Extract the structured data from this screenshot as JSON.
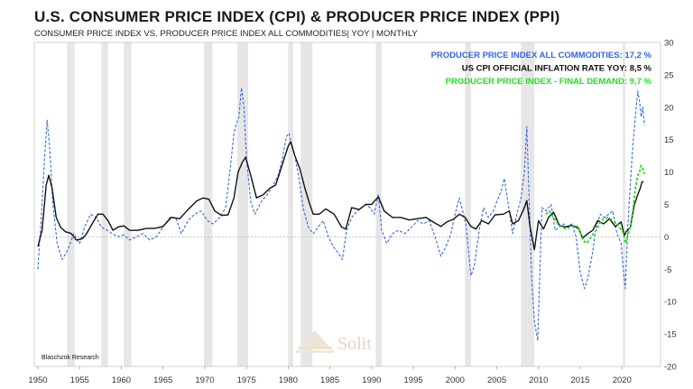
{
  "chart_data": {
    "type": "line",
    "title": "U.S. CONSUMER PRICE INDEX (CPI) & PRODUCER PRICE INDEX (PPI)",
    "subtitle": "CONSUMER PRICE INDEX VS. PRODUCER PRICE INDEX ALL COMMODITIES| YOY | MONTHLY",
    "xlim": [
      1950,
      2023
    ],
    "ylim": [
      -20,
      30
    ],
    "x_ticks": [
      1950,
      1955,
      1960,
      1965,
      1970,
      1975,
      1980,
      1985,
      1990,
      1995,
      2000,
      2005,
      2010,
      2015,
      2020
    ],
    "y_ticks": [
      30,
      25,
      20,
      15,
      10,
      5,
      0,
      -5,
      -10,
      -15,
      -20
    ],
    "legend": [
      {
        "label": "PRODUCER PRICE INDEX ALL COMMODITIES: 17,2 %",
        "color": "#3366dd"
      },
      {
        "label": "US CPI OFFICIAL INFLATION RATE YOY: 8,5 %",
        "color": "#111111"
      },
      {
        "label": "PRODUCER PRICE INDEX - FINAL DEMAND: 9,7 %",
        "color": "#22dd22"
      }
    ],
    "recessions": [
      [
        1953.5,
        1954.4
      ],
      [
        1957.6,
        1958.4
      ],
      [
        1960.3,
        1961.2
      ],
      [
        1969.9,
        1970.9
      ],
      [
        1973.9,
        1975.2
      ],
      [
        1980.0,
        1980.6
      ],
      [
        1981.5,
        1982.9
      ],
      [
        1990.5,
        1991.2
      ],
      [
        2001.2,
        2001.9
      ],
      [
        2007.9,
        2009.5
      ],
      [
        2020.1,
        2020.4
      ]
    ],
    "series": [
      {
        "name": "US CPI Official Inflation Rate YoY",
        "color": "#111111",
        "style": "solid",
        "x": [
          1950.0,
          1950.5,
          1951.0,
          1951.3,
          1951.7,
          1952.2,
          1952.7,
          1953.3,
          1954.0,
          1954.6,
          1955.3,
          1955.8,
          1956.5,
          1957.2,
          1957.8,
          1958.4,
          1959.0,
          1959.6,
          1960.3,
          1961.0,
          1962.0,
          1963.0,
          1964.0,
          1965.0,
          1966.0,
          1967.0,
          1968.0,
          1969.0,
          1969.8,
          1970.5,
          1971.2,
          1972.0,
          1972.8,
          1973.5,
          1974.0,
          1974.5,
          1974.9,
          1975.5,
          1976.2,
          1977.0,
          1977.8,
          1978.5,
          1979.0,
          1979.5,
          1980.0,
          1980.3,
          1980.8,
          1981.4,
          1982.0,
          1982.6,
          1983.0,
          1983.7,
          1984.5,
          1985.5,
          1986.4,
          1986.9,
          1987.6,
          1988.5,
          1989.3,
          1990.0,
          1990.8,
          1991.5,
          1992.5,
          1993.5,
          1994.5,
          1995.5,
          1996.5,
          1997.5,
          1998.3,
          1999.0,
          1999.8,
          2000.5,
          2001.2,
          2001.9,
          2002.5,
          2003.2,
          2004.0,
          2004.8,
          2005.8,
          2006.5,
          2006.9,
          2007.6,
          2008.3,
          2008.6,
          2009.0,
          2009.5,
          2010.0,
          2010.6,
          2011.2,
          2011.8,
          2012.5,
          2013.2,
          2014.0,
          2014.8,
          2015.3,
          2015.9,
          2016.5,
          2017.1,
          2017.8,
          2018.5,
          2019.2,
          2019.9,
          2020.3,
          2020.5,
          2021.0,
          2021.5,
          2021.9,
          2022.2,
          2022.4,
          2022.6
        ],
        "y": [
          -1.5,
          1.0,
          8.0,
          9.5,
          7.5,
          3.0,
          1.5,
          0.8,
          0.5,
          -0.5,
          -0.3,
          0.4,
          2.0,
          3.5,
          3.5,
          2.5,
          1.0,
          1.5,
          1.7,
          1.0,
          1.0,
          1.3,
          1.3,
          1.6,
          3.0,
          2.8,
          4.2,
          5.5,
          6.0,
          5.8,
          4.0,
          3.3,
          3.4,
          6.0,
          10.0,
          11.5,
          12.3,
          9.5,
          6.0,
          6.5,
          7.5,
          8.0,
          10.0,
          12.0,
          14.0,
          14.7,
          12.5,
          10.5,
          7.5,
          5.0,
          3.5,
          3.5,
          4.3,
          3.5,
          1.5,
          1.2,
          4.5,
          4.2,
          5.0,
          5.0,
          6.2,
          4.0,
          3.0,
          3.0,
          2.6,
          2.8,
          3.0,
          2.2,
          1.6,
          2.3,
          2.7,
          3.5,
          3.0,
          1.6,
          1.2,
          2.5,
          2.0,
          3.4,
          3.5,
          4.0,
          2.0,
          2.5,
          4.5,
          5.6,
          1.5,
          -2.0,
          2.5,
          1.2,
          3.0,
          3.8,
          1.8,
          1.5,
          1.8,
          1.3,
          -0.2,
          0.5,
          1.0,
          2.5,
          2.0,
          2.8,
          1.6,
          2.3,
          0.2,
          0.8,
          1.4,
          5.0,
          6.5,
          7.5,
          8.5,
          8.5
        ]
      },
      {
        "name": "Producer Price Index All Commodities",
        "color": "#3366dd",
        "style": "dashed",
        "x": [
          1950.0,
          1950.4,
          1950.8,
          1951.1,
          1951.4,
          1951.8,
          1952.3,
          1952.9,
          1953.6,
          1954.3,
          1955.0,
          1955.6,
          1956.3,
          1957.0,
          1957.6,
          1958.3,
          1958.9,
          1959.6,
          1960.3,
          1961.0,
          1961.8,
          1962.6,
          1963.4,
          1964.2,
          1965.0,
          1965.8,
          1966.5,
          1967.2,
          1968.0,
          1968.8,
          1969.6,
          1970.3,
          1971.0,
          1971.8,
          1972.5,
          1973.0,
          1973.5,
          1973.8,
          1974.1,
          1974.4,
          1974.7,
          1975.0,
          1975.5,
          1976.0,
          1976.8,
          1977.5,
          1978.2,
          1978.8,
          1979.3,
          1979.8,
          1980.1,
          1980.4,
          1980.8,
          1981.3,
          1981.8,
          1982.4,
          1983.0,
          1983.6,
          1984.2,
          1984.8,
          1985.4,
          1986.0,
          1986.5,
          1987.0,
          1987.6,
          1988.3,
          1988.8,
          1989.3,
          1989.8,
          1990.3,
          1990.8,
          1991.2,
          1991.8,
          1992.5,
          1993.2,
          1994.0,
          1994.8,
          1995.5,
          1996.2,
          1996.9,
          1997.6,
          1998.3,
          1998.9,
          1999.5,
          2000.0,
          2000.5,
          2000.9,
          2001.3,
          2001.9,
          2002.3,
          2002.9,
          2003.4,
          2004.0,
          2004.6,
          2005.0,
          2005.5,
          2005.9,
          2006.5,
          2006.9,
          2007.4,
          2007.9,
          2008.3,
          2008.6,
          2008.9,
          2009.2,
          2009.5,
          2009.9,
          2010.4,
          2010.9,
          2011.5,
          2012.0,
          2012.5,
          2013.0,
          2013.5,
          2014.0,
          2014.5,
          2015.0,
          2015.5,
          2015.9,
          2016.4,
          2016.9,
          2017.4,
          2017.9,
          2018.4,
          2018.9,
          2019.4,
          2019.9,
          2020.2,
          2020.4,
          2020.7,
          2021.0,
          2021.3,
          2021.6,
          2021.9,
          2022.1,
          2022.3,
          2022.5,
          2022.7
        ],
        "y": [
          -5.0,
          3.0,
          12.0,
          18.0,
          14.0,
          5.0,
          -1.0,
          -3.5,
          -2.0,
          0.5,
          -1.0,
          1.5,
          3.5,
          3.0,
          1.5,
          1.0,
          0.5,
          0.0,
          0.3,
          -0.5,
          0.0,
          0.5,
          -0.5,
          0.0,
          1.5,
          3.0,
          3.0,
          0.5,
          2.5,
          3.5,
          4.0,
          2.5,
          2.0,
          3.0,
          4.5,
          10.0,
          16.0,
          17.5,
          18.5,
          23.0,
          20.0,
          12.0,
          5.5,
          3.5,
          5.5,
          6.5,
          8.0,
          9.5,
          12.0,
          15.5,
          16.0,
          14.0,
          12.5,
          9.0,
          4.5,
          1.5,
          0.5,
          1.5,
          2.5,
          0.0,
          -1.5,
          -2.5,
          -3.5,
          1.0,
          3.0,
          4.0,
          4.5,
          5.0,
          4.5,
          3.5,
          6.5,
          1.0,
          -1.0,
          0.5,
          1.0,
          0.5,
          1.5,
          2.5,
          2.0,
          2.5,
          0.0,
          -3.0,
          -1.5,
          0.5,
          3.5,
          6.0,
          4.0,
          2.0,
          -6.0,
          -4.5,
          1.0,
          4.5,
          3.0,
          4.0,
          5.5,
          7.0,
          9.0,
          4.0,
          0.5,
          3.5,
          6.0,
          10.0,
          17.0,
          5.0,
          -7.0,
          -13.0,
          -16.0,
          4.5,
          4.0,
          5.0,
          1.0,
          1.5,
          2.0,
          1.5,
          2.0,
          0.0,
          -5.5,
          -8.0,
          -6.5,
          -3.0,
          1.5,
          3.5,
          3.0,
          3.5,
          4.0,
          0.5,
          -1.0,
          -5.5,
          -8.0,
          1.5,
          8.0,
          14.0,
          18.5,
          22.5,
          21.0,
          18.5,
          20.0,
          17.2
        ]
      },
      {
        "name": "Producer Price Index - Final Demand",
        "color": "#22dd22",
        "style": "dashed",
        "x": [
          2010.9,
          2011.3,
          2011.8,
          2012.3,
          2012.8,
          2013.3,
          2013.8,
          2014.3,
          2014.8,
          2015.3,
          2015.8,
          2016.3,
          2016.8,
          2017.3,
          2017.8,
          2018.3,
          2018.8,
          2019.3,
          2019.8,
          2020.2,
          2020.4,
          2020.7,
          2021.0,
          2021.3,
          2021.6,
          2021.9,
          2022.1,
          2022.3,
          2022.5,
          2022.7
        ],
        "y": [
          3.5,
          4.0,
          3.0,
          2.0,
          1.5,
          1.2,
          1.5,
          1.8,
          1.5,
          -0.5,
          -1.0,
          0.0,
          0.8,
          2.0,
          2.8,
          3.0,
          2.6,
          2.2,
          1.3,
          0.5,
          -1.0,
          0.2,
          1.5,
          4.0,
          7.5,
          9.5,
          10.0,
          11.0,
          10.5,
          9.7
        ]
      }
    ],
    "source_label": "Blaschzok Research",
    "watermark": "Solit"
  }
}
